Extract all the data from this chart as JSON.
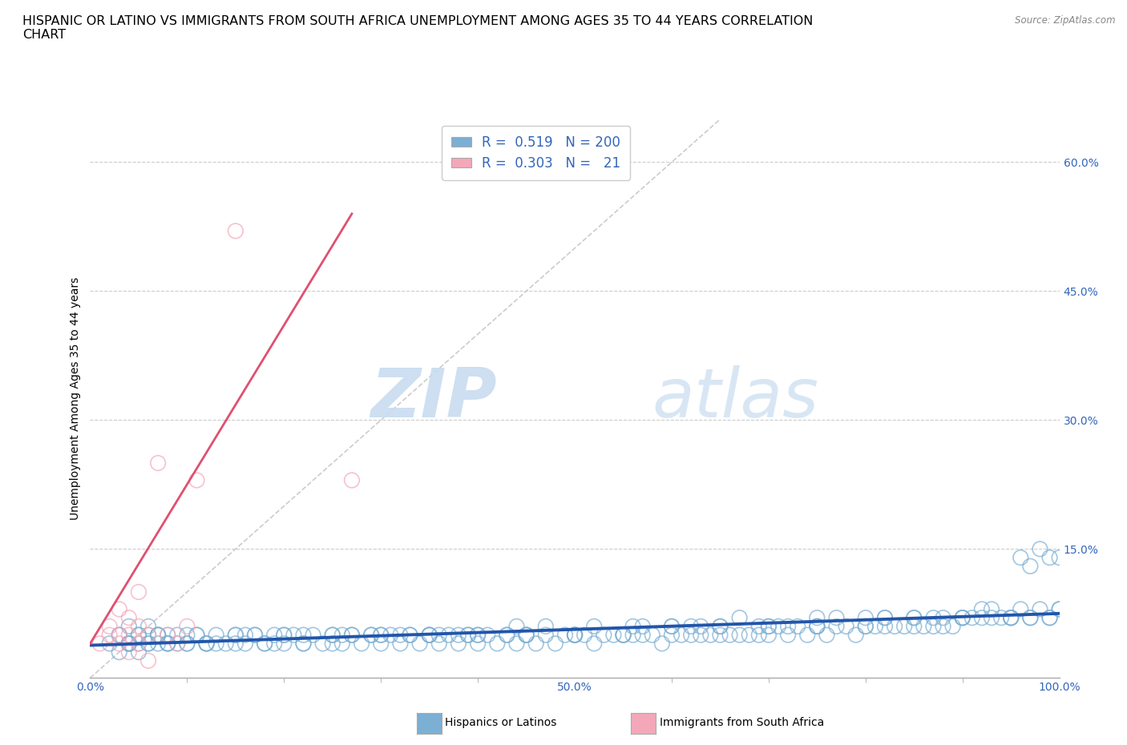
{
  "title_line1": "HISPANIC OR LATINO VS IMMIGRANTS FROM SOUTH AFRICA UNEMPLOYMENT AMONG AGES 35 TO 44 YEARS CORRELATION",
  "title_line2": "CHART",
  "source_text": "Source: ZipAtlas.com",
  "ylabel": "Unemployment Among Ages 35 to 44 years",
  "xlim": [
    0,
    1.0
  ],
  "ylim": [
    0,
    0.65
  ],
  "yticks": [
    0.0,
    0.15,
    0.3,
    0.45,
    0.6
  ],
  "blue_R": 0.519,
  "blue_N": 200,
  "pink_R": 0.303,
  "pink_N": 21,
  "blue_color": "#7BAFD4",
  "pink_color": "#F4A7B9",
  "blue_edge_color": "#5588BB",
  "pink_edge_color": "#E07090",
  "blue_line_color": "#2255AA",
  "pink_line_color": "#E05070",
  "ref_line_color": "#CCCCCC",
  "watermark_zip": "ZIP",
  "watermark_atlas": "atlas",
  "grid_linestyle": "--",
  "grid_color": "#CCCCCC",
  "background_color": "#FFFFFF",
  "title_fontsize": 11.5,
  "axis_label_fontsize": 10,
  "tick_fontsize": 10,
  "legend_fontsize": 12,
  "blue_scatter_x": [
    0.02,
    0.03,
    0.03,
    0.04,
    0.04,
    0.05,
    0.05,
    0.06,
    0.06,
    0.07,
    0.07,
    0.08,
    0.09,
    0.1,
    0.11,
    0.12,
    0.13,
    0.14,
    0.15,
    0.16,
    0.17,
    0.18,
    0.19,
    0.2,
    0.21,
    0.22,
    0.23,
    0.24,
    0.25,
    0.26,
    0.27,
    0.28,
    0.29,
    0.3,
    0.31,
    0.32,
    0.33,
    0.34,
    0.35,
    0.36,
    0.37,
    0.38,
    0.39,
    0.4,
    0.41,
    0.42,
    0.43,
    0.44,
    0.45,
    0.46,
    0.47,
    0.48,
    0.49,
    0.5,
    0.51,
    0.52,
    0.53,
    0.54,
    0.55,
    0.56,
    0.57,
    0.58,
    0.59,
    0.6,
    0.61,
    0.62,
    0.63,
    0.64,
    0.65,
    0.66,
    0.67,
    0.68,
    0.69,
    0.7,
    0.71,
    0.72,
    0.73,
    0.74,
    0.75,
    0.76,
    0.77,
    0.78,
    0.79,
    0.8,
    0.81,
    0.82,
    0.83,
    0.84,
    0.85,
    0.86,
    0.87,
    0.88,
    0.89,
    0.9,
    0.91,
    0.92,
    0.93,
    0.94,
    0.95,
    0.96,
    0.97,
    0.98,
    0.99,
    1.0,
    0.03,
    0.04,
    0.05,
    0.06,
    0.07,
    0.08,
    0.1,
    0.12,
    0.15,
    0.18,
    0.2,
    0.25,
    0.3,
    0.35,
    0.4,
    0.45,
    0.5,
    0.55,
    0.6,
    0.65,
    0.7,
    0.75,
    0.8,
    0.85,
    0.9,
    0.95,
    0.04,
    0.06,
    0.08,
    0.1,
    0.15,
    0.2,
    0.25,
    0.3,
    0.35,
    0.4,
    0.45,
    0.5,
    0.55,
    0.6,
    0.65,
    0.7,
    0.75,
    0.8,
    0.85,
    0.9,
    0.95,
    1.0,
    0.05,
    0.07,
    0.09,
    0.11,
    0.13,
    0.16,
    0.19,
    0.22,
    0.26,
    0.29,
    0.32,
    0.36,
    0.39,
    0.43,
    0.47,
    0.52,
    0.57,
    0.62,
    0.67,
    0.72,
    0.77,
    0.82,
    0.87,
    0.92,
    0.97,
    0.04,
    0.08,
    0.12,
    0.17,
    0.22,
    0.27,
    0.33,
    0.38,
    0.44,
    0.5,
    0.56,
    0.63,
    0.69,
    0.75,
    0.82,
    0.88,
    0.93,
    0.99,
    0.96,
    0.98,
    0.97,
    0.99,
    1.0
  ],
  "blue_scatter_y": [
    0.04,
    0.05,
    0.03,
    0.04,
    0.06,
    0.03,
    0.05,
    0.04,
    0.06,
    0.04,
    0.05,
    0.04,
    0.05,
    0.04,
    0.05,
    0.04,
    0.05,
    0.04,
    0.05,
    0.04,
    0.05,
    0.04,
    0.05,
    0.04,
    0.05,
    0.04,
    0.05,
    0.04,
    0.05,
    0.04,
    0.05,
    0.04,
    0.05,
    0.04,
    0.05,
    0.04,
    0.05,
    0.04,
    0.05,
    0.04,
    0.05,
    0.04,
    0.05,
    0.04,
    0.05,
    0.04,
    0.05,
    0.04,
    0.05,
    0.04,
    0.05,
    0.04,
    0.05,
    0.05,
    0.05,
    0.04,
    0.05,
    0.05,
    0.05,
    0.05,
    0.05,
    0.05,
    0.04,
    0.05,
    0.05,
    0.05,
    0.05,
    0.05,
    0.05,
    0.05,
    0.05,
    0.05,
    0.05,
    0.05,
    0.06,
    0.05,
    0.06,
    0.05,
    0.06,
    0.05,
    0.06,
    0.06,
    0.05,
    0.06,
    0.06,
    0.06,
    0.06,
    0.06,
    0.06,
    0.06,
    0.06,
    0.06,
    0.06,
    0.07,
    0.07,
    0.07,
    0.07,
    0.07,
    0.07,
    0.08,
    0.07,
    0.08,
    0.07,
    0.08,
    0.05,
    0.04,
    0.05,
    0.04,
    0.05,
    0.04,
    0.04,
    0.04,
    0.05,
    0.04,
    0.05,
    0.05,
    0.05,
    0.05,
    0.05,
    0.05,
    0.05,
    0.05,
    0.06,
    0.06,
    0.06,
    0.06,
    0.07,
    0.07,
    0.07,
    0.07,
    0.04,
    0.05,
    0.04,
    0.05,
    0.04,
    0.05,
    0.04,
    0.05,
    0.05,
    0.05,
    0.05,
    0.05,
    0.05,
    0.06,
    0.06,
    0.06,
    0.06,
    0.06,
    0.07,
    0.07,
    0.07,
    0.08,
    0.04,
    0.05,
    0.04,
    0.05,
    0.04,
    0.05,
    0.04,
    0.05,
    0.05,
    0.05,
    0.05,
    0.05,
    0.05,
    0.05,
    0.06,
    0.06,
    0.06,
    0.06,
    0.07,
    0.06,
    0.07,
    0.07,
    0.07,
    0.08,
    0.07,
    0.04,
    0.05,
    0.04,
    0.05,
    0.04,
    0.05,
    0.05,
    0.05,
    0.06,
    0.05,
    0.06,
    0.06,
    0.06,
    0.07,
    0.07,
    0.07,
    0.08,
    0.07,
    0.14,
    0.15,
    0.13,
    0.14,
    0.14
  ],
  "pink_scatter_x": [
    0.01,
    0.02,
    0.02,
    0.03,
    0.03,
    0.03,
    0.04,
    0.04,
    0.04,
    0.05,
    0.05,
    0.05,
    0.06,
    0.06,
    0.07,
    0.08,
    0.09,
    0.1,
    0.11,
    0.15,
    0.27
  ],
  "pink_scatter_y": [
    0.04,
    0.05,
    0.06,
    0.04,
    0.05,
    0.08,
    0.03,
    0.05,
    0.07,
    0.04,
    0.06,
    0.1,
    0.05,
    0.02,
    0.25,
    0.05,
    0.04,
    0.06,
    0.23,
    0.52,
    0.23
  ],
  "blue_trend_x": [
    0.0,
    1.0
  ],
  "blue_trend_y": [
    0.038,
    0.075
  ],
  "pink_trend_x": [
    0.0,
    0.27
  ],
  "pink_trend_y": [
    0.04,
    0.54
  ],
  "ref_line_x": [
    0.0,
    0.65
  ],
  "ref_line_y": [
    0.0,
    0.65
  ]
}
